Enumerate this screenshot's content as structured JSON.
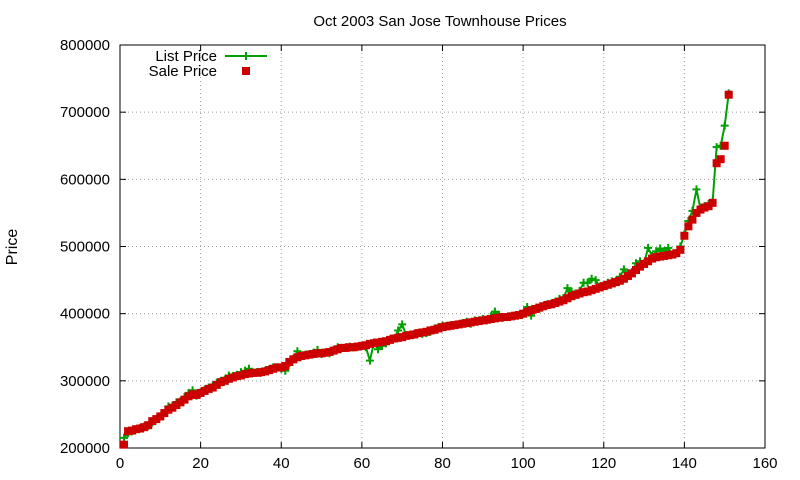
{
  "chart_data": {
    "type": "line",
    "title": "Oct 2003 San Jose Townhouse Prices",
    "xlabel": "",
    "ylabel": "Price",
    "xlim": [
      0,
      160
    ],
    "ylim": [
      200000,
      800000
    ],
    "x_ticks": [
      0,
      20,
      40,
      60,
      80,
      100,
      120,
      140,
      160
    ],
    "y_ticks": [
      200000,
      300000,
      400000,
      500000,
      600000,
      700000,
      800000
    ],
    "grid": true,
    "legend_position": "top-left",
    "colors": {
      "list": "#00a000",
      "sale": "#cc0000"
    },
    "series": [
      {
        "name": "List Price",
        "marker": "plus",
        "values": [
          [
            1,
            215000
          ],
          [
            2,
            222000
          ],
          [
            3,
            225000
          ],
          [
            4,
            228000
          ],
          [
            5,
            230000
          ],
          [
            6,
            232000
          ],
          [
            7,
            233000
          ],
          [
            8,
            238000
          ],
          [
            9,
            243000
          ],
          [
            10,
            247000
          ],
          [
            11,
            252000
          ],
          [
            12,
            262000
          ],
          [
            13,
            263000
          ],
          [
            14,
            268000
          ],
          [
            15,
            270000
          ],
          [
            16,
            276000
          ],
          [
            17,
            282000
          ],
          [
            18,
            286000
          ],
          [
            19,
            278000
          ],
          [
            20,
            283000
          ],
          [
            21,
            287000
          ],
          [
            22,
            290000
          ],
          [
            23,
            293000
          ],
          [
            24,
            297000
          ],
          [
            25,
            300000
          ],
          [
            26,
            302000
          ],
          [
            27,
            308000
          ],
          [
            28,
            307000
          ],
          [
            29,
            309000
          ],
          [
            30,
            313000
          ],
          [
            31,
            315000
          ],
          [
            32,
            318000
          ],
          [
            33,
            312000
          ],
          [
            34,
            313000
          ],
          [
            35,
            312000
          ],
          [
            36,
            315000
          ],
          [
            37,
            317000
          ],
          [
            38,
            320000
          ],
          [
            39,
            320000
          ],
          [
            40,
            318000
          ],
          [
            41,
            315000
          ],
          [
            42,
            326000
          ],
          [
            43,
            333000
          ],
          [
            44,
            344000
          ],
          [
            45,
            337000
          ],
          [
            46,
            339000
          ],
          [
            47,
            340000
          ],
          [
            48,
            342000
          ],
          [
            49,
            346000
          ],
          [
            50,
            340000
          ],
          [
            51,
            342000
          ],
          [
            52,
            341000
          ],
          [
            53,
            346000
          ],
          [
            54,
            350000
          ],
          [
            55,
            349000
          ],
          [
            56,
            350000
          ],
          [
            57,
            351000
          ],
          [
            58,
            350000
          ],
          [
            59,
            351000
          ],
          [
            60,
            352000
          ],
          [
            61,
            350000
          ],
          [
            62,
            330000
          ],
          [
            63,
            357000
          ],
          [
            64,
            347000
          ],
          [
            65,
            352000
          ],
          [
            66,
            356000
          ],
          [
            67,
            362000
          ],
          [
            68,
            363000
          ],
          [
            69,
            375000
          ],
          [
            70,
            384000
          ],
          [
            71,
            368000
          ],
          [
            72,
            369000
          ],
          [
            73,
            370000
          ],
          [
            74,
            371000
          ],
          [
            75,
            370000
          ],
          [
            76,
            371000
          ],
          [
            77,
            373000
          ],
          [
            78,
            378000
          ],
          [
            79,
            380000
          ],
          [
            80,
            382000
          ],
          [
            81,
            382000
          ],
          [
            82,
            383000
          ],
          [
            83,
            383000
          ],
          [
            84,
            384000
          ],
          [
            85,
            386000
          ],
          [
            86,
            388000
          ],
          [
            87,
            385000
          ],
          [
            88,
            390000
          ],
          [
            89,
            390000
          ],
          [
            90,
            392000
          ],
          [
            91,
            390000
          ],
          [
            92,
            396000
          ],
          [
            93,
            403000
          ],
          [
            94,
            398000
          ],
          [
            95,
            394000
          ],
          [
            96,
            395000
          ],
          [
            97,
            396000
          ],
          [
            98,
            397000
          ],
          [
            99,
            398000
          ],
          [
            100,
            400000
          ],
          [
            101,
            410000
          ],
          [
            102,
            397000
          ],
          [
            103,
            406000
          ],
          [
            104,
            407000
          ],
          [
            105,
            411000
          ],
          [
            106,
            414000
          ],
          [
            107,
            415000
          ],
          [
            108,
            418000
          ],
          [
            109,
            422000
          ],
          [
            110,
            423000
          ],
          [
            111,
            438000
          ],
          [
            112,
            433000
          ],
          [
            113,
            430000
          ],
          [
            114,
            434000
          ],
          [
            115,
            446000
          ],
          [
            116,
            446000
          ],
          [
            117,
            452000
          ],
          [
            118,
            450000
          ],
          [
            119,
            440000
          ],
          [
            120,
            443000
          ],
          [
            121,
            446000
          ],
          [
            122,
            448000
          ],
          [
            123,
            449000
          ],
          [
            124,
            455000
          ],
          [
            125,
            466000
          ],
          [
            126,
            460000
          ],
          [
            127,
            462000
          ],
          [
            128,
            475000
          ],
          [
            129,
            478000
          ],
          [
            130,
            475000
          ],
          [
            131,
            498000
          ],
          [
            132,
            486000
          ],
          [
            133,
            493000
          ],
          [
            134,
            497000
          ],
          [
            135,
            493000
          ],
          [
            136,
            498000
          ],
          [
            137,
            488000
          ],
          [
            138,
            490000
          ],
          [
            139,
            500000
          ],
          [
            140,
            518000
          ],
          [
            141,
            538000
          ],
          [
            142,
            553000
          ],
          [
            143,
            585000
          ],
          [
            144,
            556000
          ],
          [
            145,
            560000
          ],
          [
            146,
            563000
          ],
          [
            147,
            566000
          ],
          [
            148,
            648000
          ],
          [
            149,
            650000
          ],
          [
            150,
            680000
          ],
          [
            151,
            728000
          ]
        ]
      },
      {
        "name": "Sale Price",
        "marker": "square",
        "values": [
          [
            1,
            205000
          ],
          [
            2,
            225000
          ],
          [
            3,
            226000
          ],
          [
            4,
            228000
          ],
          [
            5,
            229000
          ],
          [
            6,
            231000
          ],
          [
            7,
            234000
          ],
          [
            8,
            240000
          ],
          [
            9,
            243000
          ],
          [
            10,
            247000
          ],
          [
            11,
            252000
          ],
          [
            12,
            257000
          ],
          [
            13,
            260000
          ],
          [
            14,
            264000
          ],
          [
            15,
            268000
          ],
          [
            16,
            272000
          ],
          [
            17,
            277000
          ],
          [
            18,
            280000
          ],
          [
            19,
            279000
          ],
          [
            20,
            282000
          ],
          [
            21,
            285000
          ],
          [
            22,
            288000
          ],
          [
            23,
            290000
          ],
          [
            24,
            294000
          ],
          [
            25,
            298000
          ],
          [
            26,
            300000
          ],
          [
            27,
            303000
          ],
          [
            28,
            305000
          ],
          [
            29,
            307000
          ],
          [
            30,
            308000
          ],
          [
            31,
            310000
          ],
          [
            32,
            311000
          ],
          [
            33,
            312000
          ],
          [
            34,
            312000
          ],
          [
            35,
            313000
          ],
          [
            36,
            314000
          ],
          [
            37,
            316000
          ],
          [
            38,
            318000
          ],
          [
            39,
            320000
          ],
          [
            40,
            320000
          ],
          [
            41,
            322000
          ],
          [
            42,
            328000
          ],
          [
            43,
            332000
          ],
          [
            44,
            335000
          ],
          [
            45,
            337000
          ],
          [
            46,
            338000
          ],
          [
            47,
            339000
          ],
          [
            48,
            340000
          ],
          [
            49,
            341000
          ],
          [
            50,
            341000
          ],
          [
            51,
            342000
          ],
          [
            52,
            343000
          ],
          [
            53,
            345000
          ],
          [
            54,
            347000
          ],
          [
            55,
            349000
          ],
          [
            56,
            349000
          ],
          [
            57,
            350000
          ],
          [
            58,
            350000
          ],
          [
            59,
            351000
          ],
          [
            60,
            352000
          ],
          [
            61,
            353000
          ],
          [
            62,
            355000
          ],
          [
            63,
            356000
          ],
          [
            64,
            357000
          ],
          [
            65,
            358000
          ],
          [
            66,
            359000
          ],
          [
            67,
            361000
          ],
          [
            68,
            363000
          ],
          [
            69,
            364000
          ],
          [
            70,
            365000
          ],
          [
            71,
            367000
          ],
          [
            72,
            368000
          ],
          [
            73,
            369000
          ],
          [
            74,
            371000
          ],
          [
            75,
            372000
          ],
          [
            76,
            373000
          ],
          [
            77,
            375000
          ],
          [
            78,
            376000
          ],
          [
            79,
            378000
          ],
          [
            80,
            380000
          ],
          [
            81,
            381000
          ],
          [
            82,
            382000
          ],
          [
            83,
            383000
          ],
          [
            84,
            384000
          ],
          [
            85,
            385000
          ],
          [
            86,
            386000
          ],
          [
            87,
            387000
          ],
          [
            88,
            388000
          ],
          [
            89,
            389000
          ],
          [
            90,
            390000
          ],
          [
            91,
            391000
          ],
          [
            92,
            392000
          ],
          [
            93,
            393000
          ],
          [
            94,
            394000
          ],
          [
            95,
            395000
          ],
          [
            96,
            395000
          ],
          [
            97,
            396000
          ],
          [
            98,
            397000
          ],
          [
            99,
            398000
          ],
          [
            100,
            400000
          ],
          [
            101,
            403000
          ],
          [
            102,
            405000
          ],
          [
            103,
            407000
          ],
          [
            104,
            409000
          ],
          [
            105,
            411000
          ],
          [
            106,
            413000
          ],
          [
            107,
            414000
          ],
          [
            108,
            416000
          ],
          [
            109,
            418000
          ],
          [
            110,
            420000
          ],
          [
            111,
            423000
          ],
          [
            112,
            426000
          ],
          [
            113,
            428000
          ],
          [
            114,
            430000
          ],
          [
            115,
            432000
          ],
          [
            116,
            433000
          ],
          [
            117,
            435000
          ],
          [
            118,
            437000
          ],
          [
            119,
            439000
          ],
          [
            120,
            441000
          ],
          [
            121,
            443000
          ],
          [
            122,
            445000
          ],
          [
            123,
            447000
          ],
          [
            124,
            449000
          ],
          [
            125,
            452000
          ],
          [
            126,
            456000
          ],
          [
            127,
            460000
          ],
          [
            128,
            465000
          ],
          [
            129,
            470000
          ],
          [
            130,
            474000
          ],
          [
            131,
            478000
          ],
          [
            132,
            482000
          ],
          [
            133,
            484000
          ],
          [
            134,
            485000
          ],
          [
            135,
            486000
          ],
          [
            136,
            487000
          ],
          [
            137,
            488000
          ],
          [
            138,
            490000
          ],
          [
            139,
            495000
          ],
          [
            140,
            516000
          ],
          [
            141,
            530000
          ],
          [
            142,
            540000
          ],
          [
            143,
            550000
          ],
          [
            144,
            555000
          ],
          [
            145,
            558000
          ],
          [
            146,
            560000
          ],
          [
            147,
            565000
          ],
          [
            148,
            624000
          ],
          [
            149,
            630000
          ],
          [
            150,
            650000
          ],
          [
            151,
            726000
          ]
        ]
      }
    ]
  }
}
